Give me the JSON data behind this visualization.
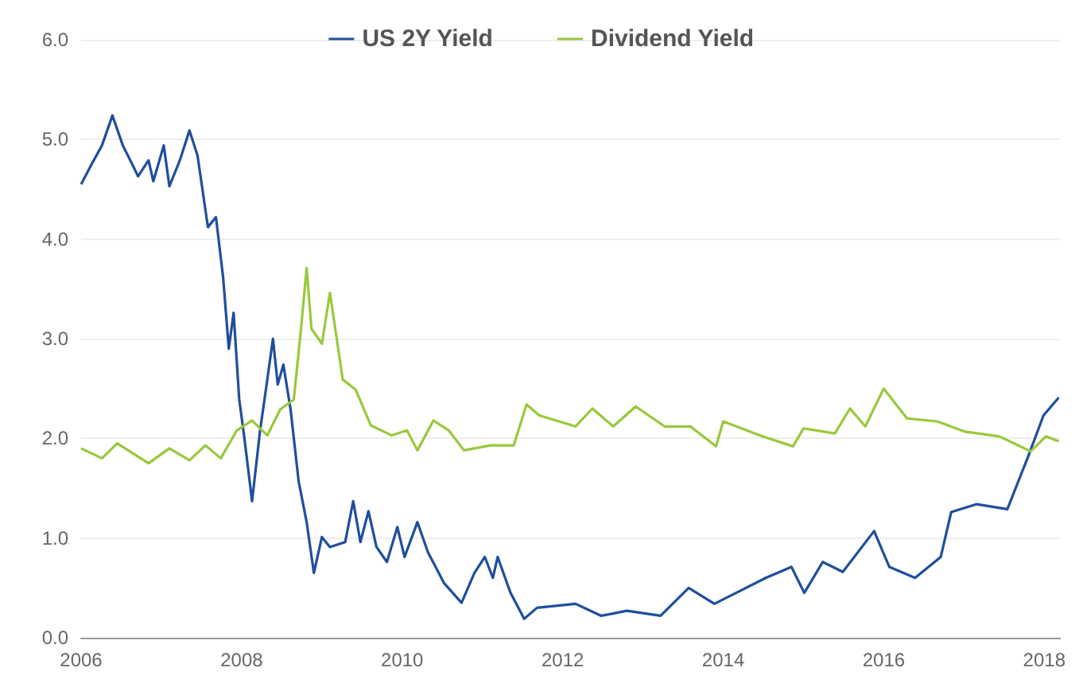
{
  "chart_data": {
    "type": "line",
    "legend": "top",
    "grid": "y",
    "marker": "none",
    "line_style": "solid",
    "xlim": [
      2006,
      2018.2
    ],
    "xticks": [
      2006,
      2008,
      2010,
      2012,
      2014,
      2016,
      2018
    ],
    "ylim": [
      0,
      6
    ],
    "yticks": [
      {
        "value": 0,
        "label": "0.0"
      },
      {
        "value": 1,
        "label": "1.0"
      },
      {
        "value": 2,
        "label": "2.0"
      },
      {
        "value": 3,
        "label": "3.0"
      },
      {
        "value": 4,
        "label": "4.0"
      },
      {
        "value": 5,
        "label": "5.0"
      },
      {
        "value": 6,
        "label": "6.0"
      }
    ],
    "series": [
      {
        "name": "US 2Y Yield",
        "color": "#1f4e9e",
        "x": [
          2006.0,
          2006.13,
          2006.26,
          2006.39,
          2006.52,
          2006.65,
          2006.71,
          2006.84,
          2006.9,
          2007.03,
          2007.1,
          2007.23,
          2007.35,
          2007.45,
          2007.58,
          2007.68,
          2007.77,
          2007.84,
          2007.9,
          2007.97,
          2008.03,
          2008.13,
          2008.23,
          2008.32,
          2008.39,
          2008.45,
          2008.52,
          2008.61,
          2008.71,
          2008.81,
          2008.9,
          2009.0,
          2009.1,
          2009.29,
          2009.39,
          2009.48,
          2009.58,
          2009.68,
          2009.81,
          2009.94,
          2010.03,
          2010.19,
          2010.32,
          2010.52,
          2010.74,
          2010.9,
          2011.03,
          2011.13,
          2011.19,
          2011.35,
          2011.52,
          2011.68,
          2012.16,
          2012.48,
          2012.8,
          2013.22,
          2013.57,
          2013.89,
          2014.21,
          2014.53,
          2014.85,
          2015.01,
          2015.24,
          2015.49,
          2015.88,
          2016.07,
          2016.39,
          2016.71,
          2016.84,
          2017.16,
          2017.54,
          2017.8,
          2017.99,
          2018.18
        ],
        "values": [
          4.55,
          4.75,
          4.94,
          5.24,
          4.94,
          4.73,
          4.63,
          4.79,
          4.58,
          4.94,
          4.53,
          4.79,
          5.09,
          4.84,
          4.12,
          4.22,
          3.61,
          2.9,
          3.26,
          2.39,
          2.03,
          1.37,
          2.08,
          2.59,
          3.0,
          2.54,
          2.74,
          2.29,
          1.57,
          1.16,
          0.65,
          1.01,
          0.91,
          0.96,
          1.37,
          0.96,
          1.27,
          0.91,
          0.76,
          1.11,
          0.81,
          1.16,
          0.86,
          0.55,
          0.35,
          0.65,
          0.81,
          0.6,
          0.81,
          0.45,
          0.19,
          0.3,
          0.34,
          0.22,
          0.27,
          0.22,
          0.5,
          0.34,
          0.47,
          0.6,
          0.71,
          0.45,
          0.76,
          0.66,
          1.07,
          0.71,
          0.6,
          0.81,
          1.26,
          1.34,
          1.29,
          1.82,
          2.23,
          2.41
        ]
      },
      {
        "name": "Dividend Yield",
        "color": "#9ac83c",
        "x": [
          2006.0,
          2006.26,
          2006.45,
          2006.84,
          2007.1,
          2007.35,
          2007.55,
          2007.74,
          2007.94,
          2008.13,
          2008.32,
          2008.48,
          2008.65,
          2008.74,
          2008.81,
          2008.87,
          2009.0,
          2009.1,
          2009.26,
          2009.42,
          2009.61,
          2009.87,
          2010.06,
          2010.19,
          2010.39,
          2010.58,
          2010.77,
          2011.1,
          2011.39,
          2011.55,
          2011.71,
          2012.16,
          2012.37,
          2012.63,
          2012.91,
          2013.27,
          2013.59,
          2013.91,
          2014.0,
          2014.49,
          2014.87,
          2015.0,
          2015.39,
          2015.58,
          2015.77,
          2016.0,
          2016.29,
          2016.67,
          2017.0,
          2017.44,
          2017.83,
          2018.02,
          2018.18
        ],
        "values": [
          1.9,
          1.8,
          1.95,
          1.75,
          1.9,
          1.78,
          1.93,
          1.8,
          2.08,
          2.18,
          2.03,
          2.29,
          2.39,
          3.1,
          3.71,
          3.1,
          2.95,
          3.46,
          2.59,
          2.49,
          2.13,
          2.03,
          2.08,
          1.88,
          2.18,
          2.08,
          1.88,
          1.93,
          1.93,
          2.34,
          2.23,
          2.12,
          2.3,
          2.12,
          2.32,
          2.12,
          2.12,
          1.92,
          2.17,
          2.02,
          1.92,
          2.1,
          2.05,
          2.3,
          2.12,
          2.5,
          2.2,
          2.17,
          2.07,
          2.02,
          1.87,
          2.02,
          1.97
        ]
      }
    ]
  }
}
